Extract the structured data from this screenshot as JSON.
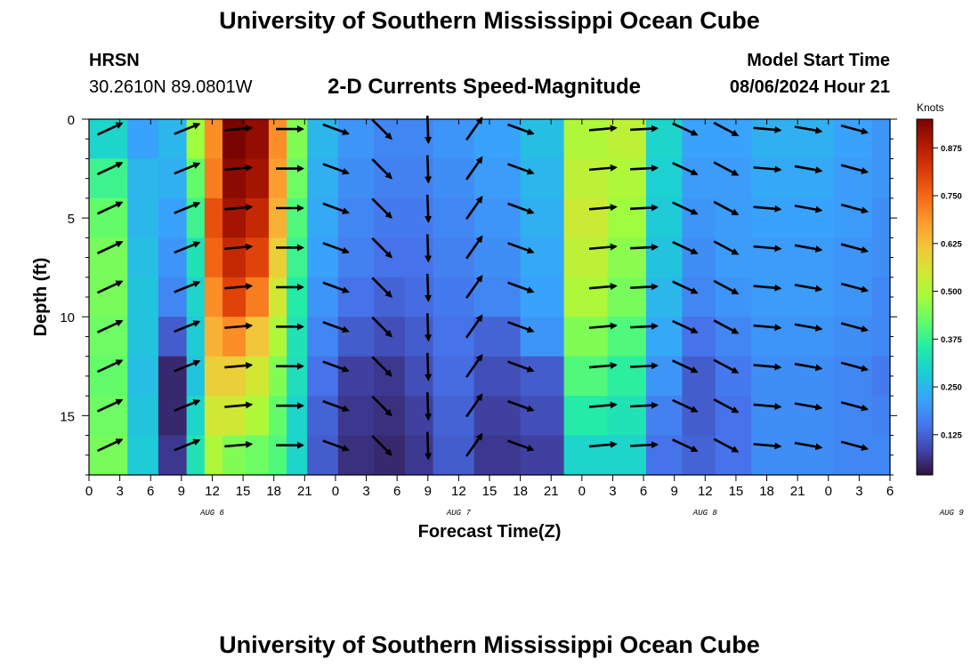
{
  "header": {
    "title": "University of Southern Mississippi Ocean Cube",
    "station": "HRSN",
    "coords": "30.2610N  89.0801W",
    "subtitle": "2-D Currents Speed-Magnitude",
    "model_label": "Model Start Time",
    "model_time": "08/06/2024 Hour 21"
  },
  "footer": {
    "title": "University of Southern Mississippi Ocean Cube"
  },
  "chart_data": {
    "type": "heatmap",
    "xlabel": "Forecast Time(Z)",
    "ylabel": "Depth (ft)",
    "colorbar_label": "Knots",
    "colorbar_ticks": [
      "0.125",
      "0.250",
      "0.375",
      "0.500",
      "0.625",
      "0.750",
      "0.875"
    ],
    "colorbar_range": [
      0.02,
      0.95
    ],
    "x_tick_labels": [
      "0",
      "3",
      "6",
      "9",
      "12",
      "15",
      "18",
      "21",
      "0",
      "3",
      "6",
      "9",
      "12",
      "15",
      "18",
      "21",
      "0",
      "3",
      "6",
      "9",
      "12",
      "15",
      "18",
      "21",
      "0",
      "3",
      "6"
    ],
    "date_labels": [
      {
        "label": "AUG 6",
        "hour": 12
      },
      {
        "label": "AUG 7",
        "hour": 36
      },
      {
        "label": "AUG 8",
        "hour": 60
      },
      {
        "label": "AUG 9",
        "hour": 84
      }
    ],
    "xlim": [
      0,
      78
    ],
    "ylim": [
      18,
      0
    ],
    "y_ticks": [
      0,
      5,
      10,
      15
    ],
    "columns": [
      {
        "hour": 2.5,
        "angle": -25,
        "speed": [
          0.3,
          0.38,
          0.42,
          0.44,
          0.44,
          0.43,
          0.42,
          0.43,
          0.44
        ]
      },
      {
        "hour": 5,
        "angle": -25,
        "speed": [
          0.22,
          0.25,
          0.25,
          0.26,
          0.27,
          0.27,
          0.26,
          0.27,
          0.28
        ]
      },
      {
        "hour": 8.5,
        "angle": -22,
        "speed": [
          0.25,
          0.24,
          0.22,
          0.2,
          0.18,
          0.12,
          0.05,
          0.05,
          0.07
        ]
      },
      {
        "hour": 10.5,
        "angle": -30,
        "speed": [
          0.48,
          0.42,
          0.38,
          0.33,
          0.3,
          0.28,
          0.27,
          0.3,
          0.33
        ]
      },
      {
        "hour": 12,
        "angle": -10,
        "speed": [
          0.7,
          0.72,
          0.78,
          0.75,
          0.7,
          0.65,
          0.6,
          0.55,
          0.5
        ]
      },
      {
        "hour": 14,
        "angle": -5,
        "speed": [
          0.95,
          0.93,
          0.9,
          0.85,
          0.8,
          0.7,
          0.6,
          0.55,
          0.45
        ]
      },
      {
        "hour": 16.5,
        "angle": -3,
        "speed": [
          0.92,
          0.9,
          0.85,
          0.8,
          0.72,
          0.62,
          0.55,
          0.5,
          0.43
        ]
      },
      {
        "hour": 18.5,
        "angle": -2,
        "speed": [
          0.7,
          0.68,
          0.65,
          0.6,
          0.55,
          0.5,
          0.45,
          0.42,
          0.4
        ]
      },
      {
        "hour": 20,
        "angle": 0,
        "speed": [
          0.45,
          0.43,
          0.4,
          0.38,
          0.35,
          0.33,
          0.32,
          0.3,
          0.3
        ]
      },
      {
        "hour": 22.5,
        "angle": 20,
        "speed": [
          0.25,
          0.24,
          0.23,
          0.22,
          0.2,
          0.18,
          0.15,
          0.13,
          0.12
        ]
      },
      {
        "hour": 26,
        "angle": 70,
        "speed": [
          0.2,
          0.19,
          0.18,
          0.17,
          0.15,
          0.12,
          0.08,
          0.07,
          0.06
        ]
      },
      {
        "hour": 29.5,
        "angle": 45,
        "speed": [
          0.18,
          0.17,
          0.16,
          0.15,
          0.13,
          0.1,
          0.07,
          0.06,
          0.05
        ]
      },
      {
        "hour": 32,
        "angle": 88,
        "speed": [
          0.18,
          0.17,
          0.16,
          0.15,
          0.14,
          0.12,
          0.1,
          0.08,
          0.07
        ]
      },
      {
        "hour": 35,
        "angle": -55,
        "speed": [
          0.2,
          0.19,
          0.18,
          0.17,
          0.16,
          0.15,
          0.14,
          0.13,
          0.12
        ]
      },
      {
        "hour": 40,
        "angle": 20,
        "speed": [
          0.22,
          0.21,
          0.2,
          0.19,
          0.18,
          0.13,
          0.1,
          0.08,
          0.07
        ]
      },
      {
        "hour": 44,
        "angle": 40,
        "speed": [
          0.26,
          0.25,
          0.24,
          0.23,
          0.22,
          0.2,
          0.12,
          0.1,
          0.08
        ]
      },
      {
        "hour": 48.5,
        "angle": -5,
        "speed": [
          0.5,
          0.52,
          0.54,
          0.52,
          0.5,
          0.45,
          0.4,
          0.35,
          0.3
        ]
      },
      {
        "hour": 52.5,
        "angle": -3,
        "speed": [
          0.52,
          0.5,
          0.48,
          0.46,
          0.44,
          0.4,
          0.36,
          0.33,
          0.3
        ]
      },
      {
        "hour": 56,
        "angle": 0,
        "speed": [
          0.3,
          0.29,
          0.28,
          0.27,
          0.25,
          0.23,
          0.2,
          0.17,
          0.15
        ]
      },
      {
        "hour": 59.5,
        "angle": 25,
        "speed": [
          0.22,
          0.21,
          0.2,
          0.19,
          0.18,
          0.15,
          0.12,
          0.12,
          0.13
        ]
      },
      {
        "hour": 62.5,
        "angle": 28,
        "speed": [
          0.22,
          0.21,
          0.21,
          0.21,
          0.2,
          0.18,
          0.16,
          0.15,
          0.15
        ]
      },
      {
        "hour": 66.5,
        "angle": 5,
        "speed": [
          0.24,
          0.23,
          0.22,
          0.21,
          0.21,
          0.2,
          0.19,
          0.19,
          0.19
        ]
      },
      {
        "hour": 70.5,
        "angle": 10,
        "speed": [
          0.24,
          0.23,
          0.22,
          0.21,
          0.21,
          0.2,
          0.19,
          0.19,
          0.19
        ]
      },
      {
        "hour": 74.5,
        "angle": 15,
        "speed": [
          0.22,
          0.21,
          0.21,
          0.2,
          0.2,
          0.19,
          0.18,
          0.18,
          0.18
        ]
      },
      {
        "hour": 78,
        "angle": 15,
        "speed": [
          0.2,
          0.2,
          0.19,
          0.19,
          0.18,
          0.18,
          0.16,
          0.17,
          0.18
        ]
      }
    ]
  }
}
